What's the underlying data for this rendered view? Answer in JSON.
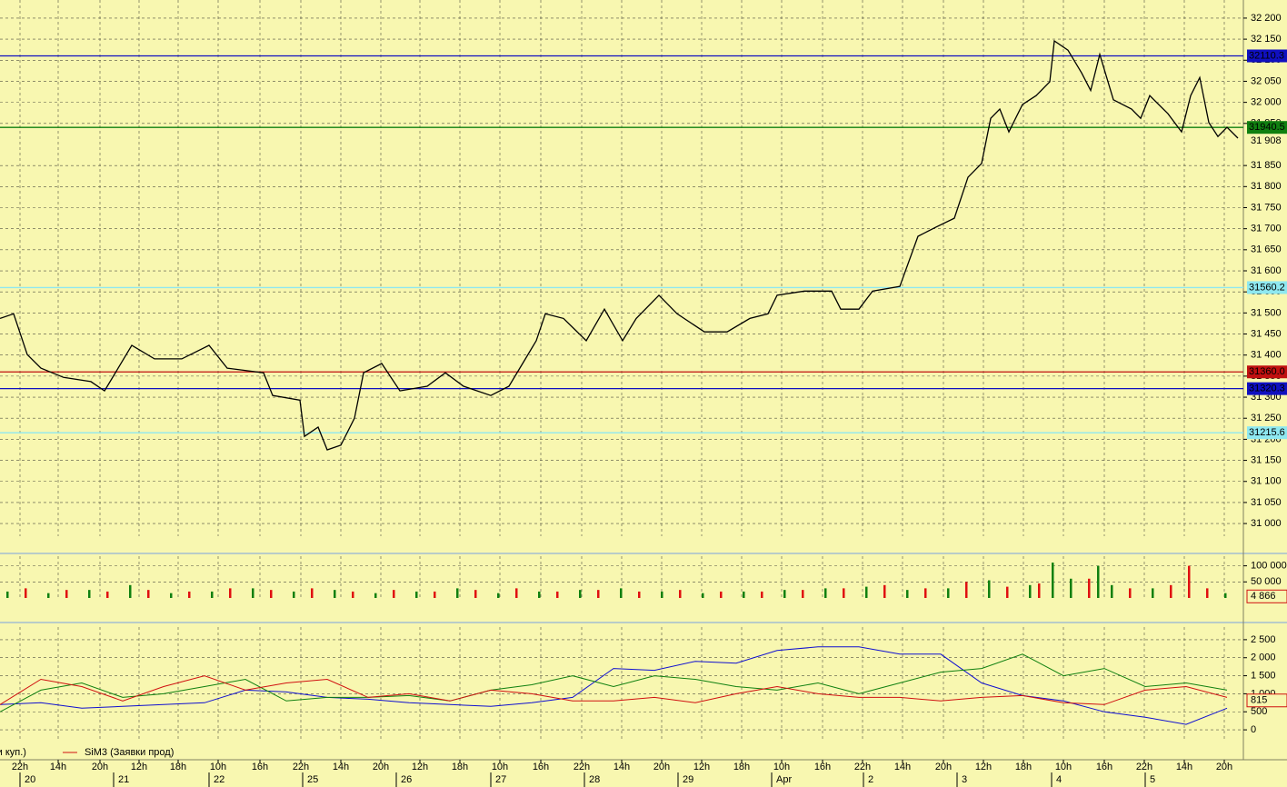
{
  "chart_data": [
    {
      "type": "line",
      "xlim": [
        0,
        1368
      ],
      "ylim": [
        30970,
        32243
      ],
      "yticks": [
        {
          "value": 31000,
          "label": "31 000"
        },
        {
          "value": 31050,
          "label": "31 050"
        },
        {
          "value": 31100,
          "label": "31 100"
        },
        {
          "value": 31150,
          "label": "31 150"
        },
        {
          "value": 31200,
          "label": "31 200"
        },
        {
          "value": 31250,
          "label": "31 250"
        },
        {
          "value": 31300,
          "label": "31 300"
        },
        {
          "value": 31350,
          "label": "31 350"
        },
        {
          "value": 31400,
          "label": "31 400"
        },
        {
          "value": 31450,
          "label": "31 450"
        },
        {
          "value": 31500,
          "label": "31 500"
        },
        {
          "value": 31550,
          "label": "31 550"
        },
        {
          "value": 31600,
          "label": "31 600"
        },
        {
          "value": 31650,
          "label": "31 650"
        },
        {
          "value": 31700,
          "label": "31 700"
        },
        {
          "value": 31750,
          "label": "31 750"
        },
        {
          "value": 31800,
          "label": "31 800"
        },
        {
          "value": 31850,
          "label": "31 850"
        },
        {
          "value": 31950,
          "label": "31 950"
        },
        {
          "value": 32000,
          "label": "32 000"
        },
        {
          "value": 32050,
          "label": "32 050"
        },
        {
          "value": 32100,
          "label": "32 100"
        },
        {
          "value": 32150,
          "label": "32 150"
        },
        {
          "value": 32200,
          "label": "32 200"
        }
      ],
      "xticks": [
        {
          "value": 22,
          "label": "22h"
        },
        {
          "value": 64,
          "label": "14h"
        },
        {
          "value": 110,
          "label": "20h"
        },
        {
          "value": 153,
          "label": "12h"
        },
        {
          "value": 196,
          "label": "18h"
        },
        {
          "value": 240,
          "label": "10h"
        },
        {
          "value": 286,
          "label": "16h"
        },
        {
          "value": 331,
          "label": "22h"
        },
        {
          "value": 375,
          "label": "14h"
        },
        {
          "value": 419,
          "label": "20h"
        },
        {
          "value": 462,
          "label": "12h"
        },
        {
          "value": 506,
          "label": "18h"
        },
        {
          "value": 550,
          "label": "10h"
        },
        {
          "value": 595,
          "label": "16h"
        },
        {
          "value": 640,
          "label": "22h"
        },
        {
          "value": 684,
          "label": "14h"
        },
        {
          "value": 728,
          "label": "20h"
        },
        {
          "value": 772,
          "label": "12h"
        },
        {
          "value": 816,
          "label": "18h"
        },
        {
          "value": 860,
          "label": "10h"
        },
        {
          "value": 905,
          "label": "16h"
        },
        {
          "value": 949,
          "label": "22h"
        },
        {
          "value": 993,
          "label": "14h"
        },
        {
          "value": 1038,
          "label": "20h"
        },
        {
          "value": 1082,
          "label": "12h"
        },
        {
          "value": 1126,
          "label": "18h"
        },
        {
          "value": 1170,
          "label": "10h"
        },
        {
          "value": 1215,
          "label": "16h"
        },
        {
          "value": 1259,
          "label": "22h"
        },
        {
          "value": 1303,
          "label": "14h"
        },
        {
          "value": 1347,
          "label": "20h"
        }
      ],
      "day_ticks": [
        {
          "value": 22,
          "label": "20"
        },
        {
          "value": 125,
          "label": "21"
        },
        {
          "value": 230,
          "label": "22"
        },
        {
          "value": 333,
          "label": "25"
        },
        {
          "value": 436,
          "label": "26"
        },
        {
          "value": 540,
          "label": "27"
        },
        {
          "value": 643,
          "label": "28"
        },
        {
          "value": 746,
          "label": "29"
        },
        {
          "value": 849,
          "label": "Apr"
        },
        {
          "value": 950,
          "label": "2"
        },
        {
          "value": 1053,
          "label": "3"
        },
        {
          "value": 1157,
          "label": "4"
        },
        {
          "value": 1260,
          "label": "5"
        }
      ],
      "levels": [
        {
          "value": 32110.3,
          "label": "32110.3",
          "color": "#1010c0"
        },
        {
          "value": 31940.5,
          "label": "31940.5",
          "color": "#108010"
        },
        {
          "value": 31560.2,
          "label": "31560.2",
          "color": "#8ee8f0"
        },
        {
          "value": 31360.0,
          "label": "31360.0",
          "color": "#c01010"
        },
        {
          "value": 31320.3,
          "label": "31320.3",
          "color": "#1010c0"
        },
        {
          "value": 31215.6,
          "label": "31215.6",
          "color": "#8ee8f0"
        }
      ],
      "last_value": {
        "value": 31908,
        "label": "31 908"
      },
      "series": [
        {
          "color": "#000000",
          "x": [
            0,
            15,
            30,
            45,
            70,
            100,
            115,
            130,
            145,
            170,
            200,
            230,
            250,
            290,
            300,
            330,
            335,
            350,
            360,
            375,
            390,
            400,
            420,
            440,
            470,
            490,
            510,
            540,
            560,
            575,
            590,
            600,
            620,
            645,
            665,
            685,
            700,
            725,
            745,
            775,
            800,
            825,
            845,
            855,
            885,
            915,
            925,
            945,
            960,
            990,
            1010,
            1030,
            1050,
            1065,
            1080,
            1090,
            1100,
            1110,
            1125,
            1140,
            1155,
            1160,
            1175,
            1190,
            1200,
            1210,
            1225,
            1245,
            1255,
            1265,
            1285,
            1300,
            1310,
            1320,
            1330,
            1340,
            1350,
            1362
          ],
          "values": [
            31487,
            31498,
            31401,
            31369,
            31347,
            31337,
            31315,
            31369,
            31423,
            31391,
            31391,
            31423,
            31369,
            31358,
            31304,
            31293,
            31207,
            31229,
            31175,
            31186,
            31250,
            31358,
            31380,
            31315,
            31326,
            31358,
            31326,
            31304,
            31326,
            31380,
            31434,
            31498,
            31487,
            31434,
            31509,
            31434,
            31487,
            31542,
            31498,
            31455,
            31455,
            31487,
            31498,
            31542,
            31552,
            31552,
            31509,
            31509,
            31552,
            31563,
            31682,
            31704,
            31725,
            31822,
            31855,
            31962,
            31984,
            31930,
            31995,
            32016,
            32049,
            32146,
            32124,
            32070,
            32028,
            32114,
            32006,
            31984,
            31962,
            32016,
            31973,
            31930,
            32016,
            32059,
            31952,
            31919,
            31941,
            31915
          ]
        }
      ]
    },
    {
      "type": "bar",
      "xlim": [
        0,
        1368
      ],
      "ylim": [
        0,
        130000
      ],
      "yticks": [
        {
          "value": 100000,
          "label": "100 000"
        },
        {
          "value": 50000,
          "label": "50 000"
        }
      ],
      "last_value": {
        "value": 4866,
        "label": "4 866"
      },
      "series": [
        {
          "color": "#108010",
          "x": [
            8,
            53,
            98,
            143,
            188,
            233,
            278,
            323,
            368,
            413,
            458,
            503,
            548,
            593,
            638,
            683,
            728,
            773,
            818,
            863,
            908,
            953,
            998,
            1043,
            1088,
            1133,
            1158,
            1178,
            1208,
            1223,
            1268,
            1308,
            1348
          ],
          "values": [
            20000,
            15000,
            25000,
            40000,
            15000,
            20000,
            30000,
            20000,
            25000,
            15000,
            20000,
            30000,
            15000,
            20000,
            25000,
            30000,
            20000,
            15000,
            20000,
            25000,
            30000,
            35000,
            25000,
            30000,
            55000,
            40000,
            110000,
            60000,
            100000,
            40000,
            30000,
            45000,
            15000
          ]
        },
        {
          "color": "#e01010",
          "x": [
            28,
            73,
            118,
            163,
            208,
            253,
            298,
            343,
            388,
            433,
            478,
            523,
            568,
            613,
            658,
            703,
            748,
            793,
            838,
            883,
            928,
            973,
            1018,
            1063,
            1108,
            1143,
            1198,
            1243,
            1288,
            1308,
            1328
          ],
          "values": [
            30000,
            25000,
            20000,
            25000,
            20000,
            30000,
            25000,
            30000,
            20000,
            25000,
            20000,
            25000,
            30000,
            20000,
            25000,
            20000,
            25000,
            20000,
            20000,
            25000,
            30000,
            40000,
            30000,
            50000,
            35000,
            45000,
            60000,
            30000,
            40000,
            100000,
            30000
          ]
        }
      ]
    },
    {
      "type": "line",
      "xlim": [
        0,
        1368
      ],
      "ylim": [
        -300,
        2850
      ],
      "yticks": [
        {
          "value": 0,
          "label": "0"
        },
        {
          "value": 500,
          "label": "500"
        },
        {
          "value": 1000,
          "label": "1 000"
        },
        {
          "value": 1500,
          "label": "1 500"
        },
        {
          "value": 2000,
          "label": "2 000"
        },
        {
          "value": 2500,
          "label": "2 500"
        }
      ],
      "last_value": {
        "value": 815,
        "label": "815"
      },
      "series": [
        {
          "color": "#1010d0",
          "x": [
            0,
            45,
            90,
            135,
            180,
            225,
            270,
            315,
            360,
            405,
            450,
            495,
            540,
            585,
            630,
            675,
            720,
            765,
            810,
            855,
            900,
            945,
            990,
            1035,
            1080,
            1125,
            1170,
            1215,
            1260,
            1305,
            1350
          ],
          "values": [
            700,
            750,
            600,
            650,
            700,
            750,
            1100,
            1050,
            900,
            850,
            750,
            700,
            650,
            750,
            900,
            1700,
            1650,
            1900,
            1850,
            2200,
            2300,
            2300,
            2100,
            2100,
            1300,
            950,
            800,
            500,
            350,
            150,
            600
          ]
        },
        {
          "name": "вки куп.)",
          "color": "#108010",
          "x": [
            0,
            45,
            90,
            135,
            180,
            225,
            270,
            315,
            360,
            405,
            450,
            495,
            540,
            585,
            630,
            675,
            720,
            765,
            810,
            855,
            900,
            945,
            990,
            1035,
            1080,
            1125,
            1170,
            1215,
            1260,
            1305,
            1350
          ],
          "values": [
            500,
            1100,
            1300,
            900,
            1000,
            1200,
            1400,
            800,
            900,
            900,
            950,
            800,
            1100,
            1250,
            1500,
            1200,
            1500,
            1400,
            1200,
            1100,
            1300,
            1000,
            1300,
            1600,
            1700,
            2100,
            1500,
            1700,
            1200,
            1300,
            1100
          ]
        },
        {
          "name": "SiM3 (Заявки прод)",
          "color": "#d01010",
          "x": [
            0,
            45,
            90,
            135,
            180,
            225,
            270,
            315,
            360,
            405,
            450,
            495,
            540,
            585,
            630,
            675,
            720,
            765,
            810,
            855,
            900,
            945,
            990,
            1035,
            1080,
            1125,
            1170,
            1215,
            1260,
            1305,
            1350
          ],
          "values": [
            700,
            1400,
            1200,
            800,
            1200,
            1500,
            1100,
            1300,
            1400,
            900,
            1000,
            800,
            1100,
            1000,
            800,
            800,
            900,
            750,
            1000,
            1200,
            1000,
            900,
            900,
            800,
            900,
            950,
            750,
            700,
            1100,
            1200,
            900
          ]
        }
      ]
    }
  ]
}
